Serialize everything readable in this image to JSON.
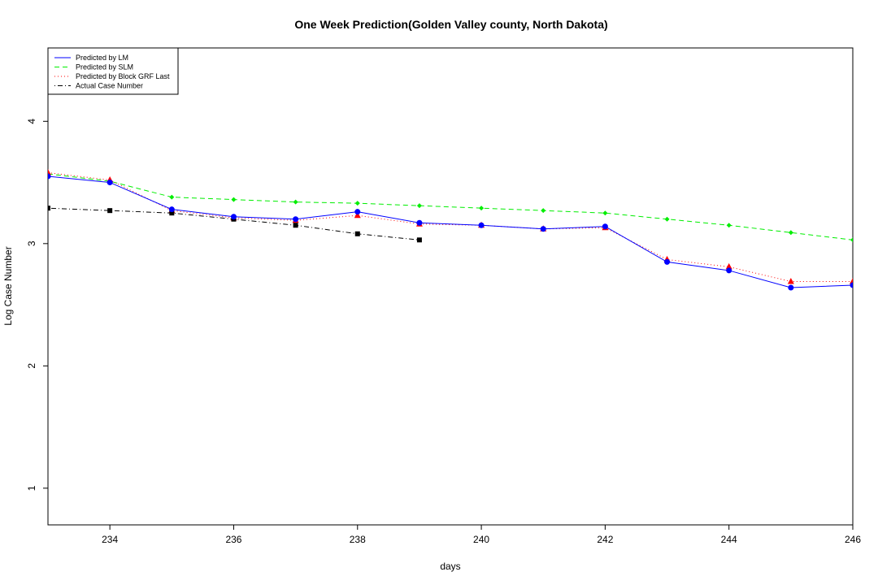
{
  "chart_data": {
    "type": "line",
    "title": "One Week Prediction(Golden Valley county, North Dakota)",
    "xlabel": "days",
    "ylabel": "Log Case Number",
    "xlim": [
      233,
      246
    ],
    "ylim": [
      0.7,
      4.6
    ],
    "x_ticks": [
      234,
      236,
      238,
      240,
      242,
      244,
      246
    ],
    "y_ticks": [
      1,
      2,
      3,
      4
    ],
    "grid": false,
    "legend_position": "top-left",
    "series": [
      {
        "name": "Predicted by LM",
        "color": "#0000ff",
        "dash": "solid",
        "marker": "circle",
        "x": [
          233,
          234,
          235,
          236,
          237,
          238,
          239,
          240,
          241,
          242,
          243,
          244,
          245,
          246
        ],
        "values": [
          3.55,
          3.5,
          3.28,
          3.22,
          3.2,
          3.26,
          3.17,
          3.15,
          3.12,
          3.14,
          2.85,
          2.78,
          2.64,
          2.66
        ]
      },
      {
        "name": "Predicted by SLM",
        "color": "#00ee00",
        "dash": "dashed",
        "marker": "diamond",
        "x": [
          233,
          234,
          235,
          236,
          237,
          238,
          239,
          240,
          241,
          242,
          243,
          244,
          245,
          246
        ],
        "values": [
          3.57,
          3.51,
          3.38,
          3.36,
          3.34,
          3.33,
          3.31,
          3.29,
          3.27,
          3.25,
          3.2,
          3.15,
          3.09,
          3.03
        ]
      },
      {
        "name": "Predicted by Block GRF Last",
        "color": "#ff0000",
        "dash": "dotted",
        "marker": "triangle",
        "x": [
          233,
          234,
          235,
          236,
          237,
          238,
          239,
          240,
          241,
          242,
          243,
          244,
          245,
          246
        ],
        "values": [
          3.58,
          3.52,
          3.27,
          3.21,
          3.19,
          3.23,
          3.16,
          3.15,
          3.12,
          3.13,
          2.87,
          2.81,
          2.69,
          2.69
        ]
      },
      {
        "name": "Actual Case Number",
        "color": "#000000",
        "dash": "dotdash",
        "marker": "square",
        "x": [
          233,
          234,
          235,
          236,
          237,
          238,
          239
        ],
        "values": [
          3.29,
          3.27,
          3.25,
          3.2,
          3.15,
          3.08,
          3.03
        ]
      }
    ]
  }
}
